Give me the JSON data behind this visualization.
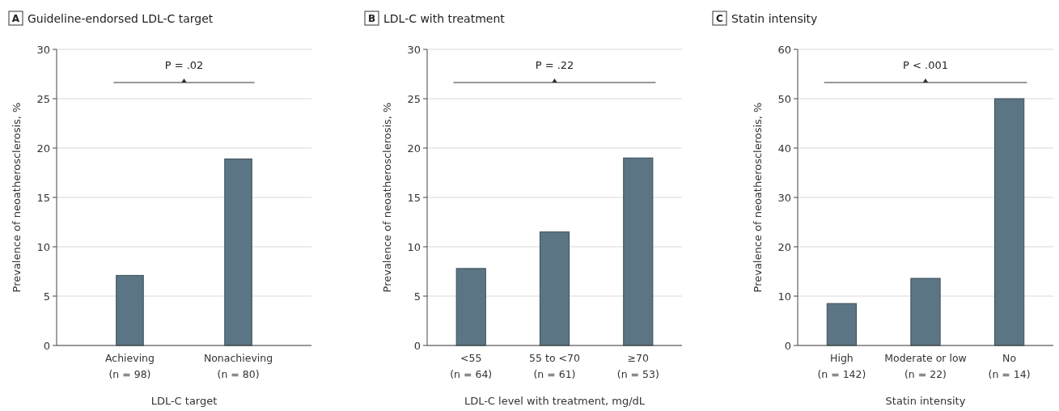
{
  "chart_data": [
    {
      "type": "bar",
      "title": "Guideline-endorsed LDL-C target",
      "xlabel": "LDL-C target",
      "ylabel": "Prevalence of neoatherosclerosis, %",
      "categories": [
        "Achieving\n(n = 98)",
        "Nonachieving\n(n = 80)"
      ],
      "values": [
        7.1,
        18.9
      ],
      "color": "#5b7585",
      "ylim": [
        0,
        30
      ],
      "yticks": [
        0,
        5,
        10,
        15,
        20,
        25,
        30
      ],
      "grid": "y",
      "annotations": [
        "A",
        "P = .02"
      ]
    },
    {
      "type": "bar",
      "title": "LDL-C with treatment",
      "xlabel": "LDL-C level with treatment, mg/dL",
      "ylabel": "Prevalence of neoatherosclerosis, %",
      "categories": [
        "<55\n(n = 64)",
        "55 to <70\n(n = 61)",
        "≥70\n(n = 53)"
      ],
      "values": [
        7.8,
        11.5,
        19.0
      ],
      "color": "#5b7585",
      "ylim": [
        0,
        30
      ],
      "yticks": [
        0,
        5,
        10,
        15,
        20,
        25,
        30
      ],
      "grid": "y",
      "annotations": [
        "B",
        "P = .22"
      ]
    },
    {
      "type": "bar",
      "title": "Statin intensity",
      "xlabel": "Statin intensity",
      "ylabel": "Prevalence of neoatherosclerosis, %",
      "categories": [
        "High\n(n = 142)",
        "Moderate or low\n(n = 22)",
        "No\n(n = 14)"
      ],
      "values": [
        8.5,
        13.6,
        50.0
      ],
      "color": "#5b7585",
      "ylim": [
        0,
        60
      ],
      "yticks": [
        0,
        10,
        20,
        30,
        40,
        50,
        60
      ],
      "grid": "y",
      "annotations": [
        "C",
        "P < .001"
      ]
    }
  ]
}
